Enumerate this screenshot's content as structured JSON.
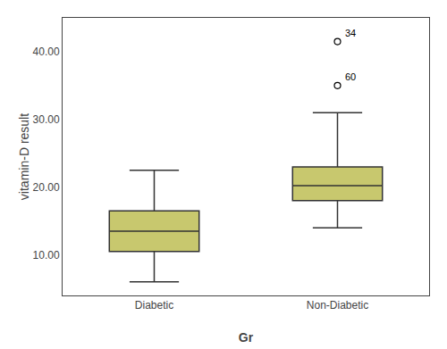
{
  "chart_data": {
    "type": "box",
    "categories": [
      "Diabetic",
      "Non-Diabetic"
    ],
    "boxes": [
      {
        "whisker_low": 6.0,
        "q1": 10.5,
        "median": 13.5,
        "q3": 16.5,
        "whisker_high": 22.5,
        "outliers": [],
        "outlier_labels": []
      },
      {
        "whisker_low": 14.0,
        "q1": 18.0,
        "median": 20.2,
        "q3": 23.0,
        "whisker_high": 31.0,
        "outliers": [
          35.0,
          41.5
        ],
        "outlier_labels": [
          "60",
          "34"
        ]
      }
    ],
    "color": "#c8c86e",
    "ylabel": "vitamin-D result",
    "xlabel": "Gr",
    "ylim": [
      4.0,
      45.0
    ],
    "yticks": [
      {
        "value": 10.0,
        "label": "10.00"
      },
      {
        "value": 20.0,
        "label": "20.00"
      },
      {
        "value": 30.0,
        "label": "30.00"
      },
      {
        "value": 40.0,
        "label": "40.00"
      }
    ],
    "grid": false
  }
}
